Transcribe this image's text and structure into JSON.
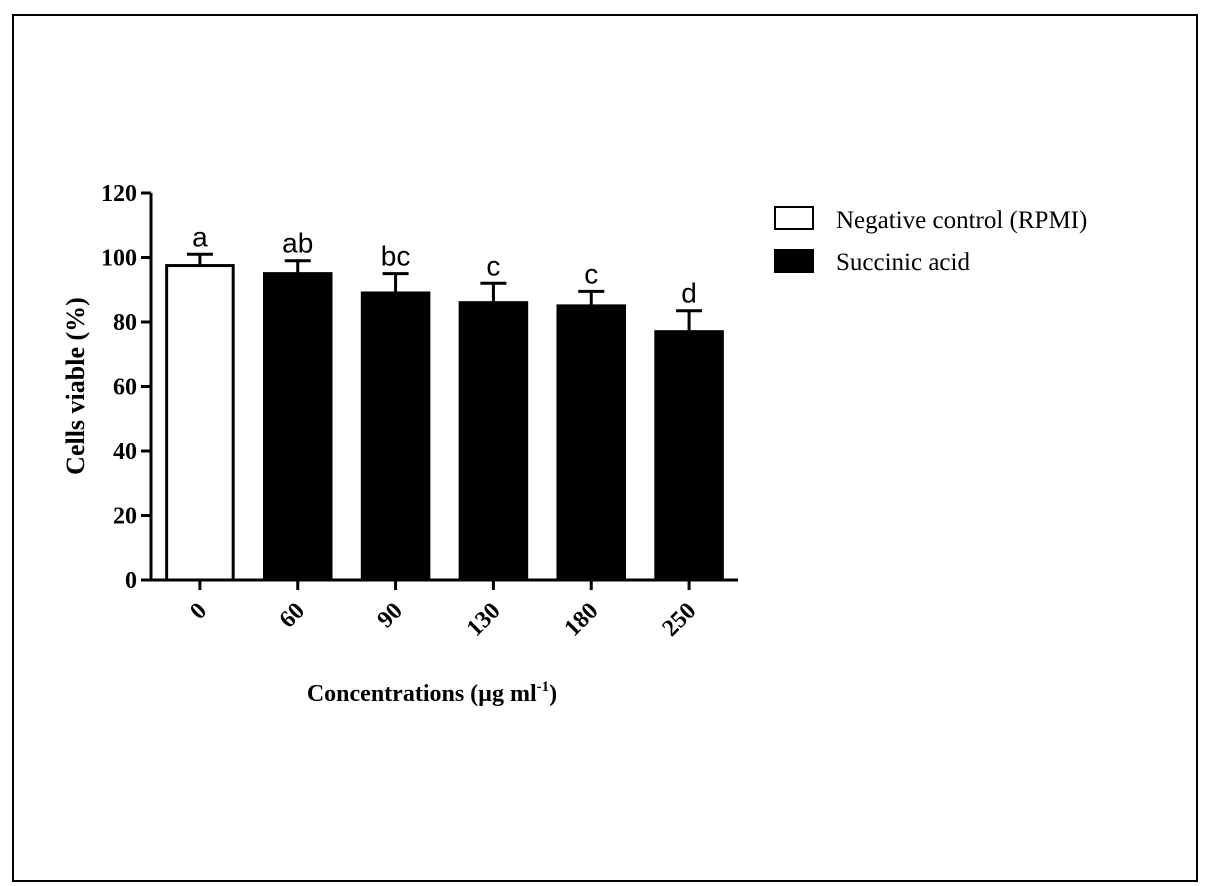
{
  "chart_data": {
    "type": "bar",
    "categories": [
      "0",
      "60",
      "90",
      "130",
      "180",
      "250"
    ],
    "values": [
      97.5,
      95,
      89,
      86,
      85,
      77
    ],
    "errors": [
      3.5,
      4,
      6,
      6,
      4.5,
      6.5
    ],
    "significance_letters": [
      "a",
      "ab",
      "bc",
      "c",
      "c",
      "d"
    ],
    "bar_series": [
      "Negative control (RPMI)",
      "Succinic acid",
      "Succinic acid",
      "Succinic acid",
      "Succinic acid",
      "Succinic acid"
    ],
    "ylim": [
      0,
      120
    ],
    "yticks": [
      0,
      20,
      40,
      60,
      80,
      100,
      120
    ],
    "ytick_labels": [
      "0",
      "20",
      "40",
      "60",
      "80",
      "100",
      "120"
    ],
    "ylabel": "Cells viable (%)",
    "xlabel_main": "Concentrations (µg ml",
    "xlabel_sup": "-1",
    "xlabel_close": ")",
    "grid": false,
    "legend_position": "top-right",
    "legend": [
      {
        "name": "Negative control (RPMI)",
        "fill": "#ffffff"
      },
      {
        "name": "Succinic acid",
        "fill": "#000000"
      }
    ],
    "colors": {
      "control": "#ffffff",
      "treatment": "#000000",
      "axis": "#000000"
    }
  }
}
